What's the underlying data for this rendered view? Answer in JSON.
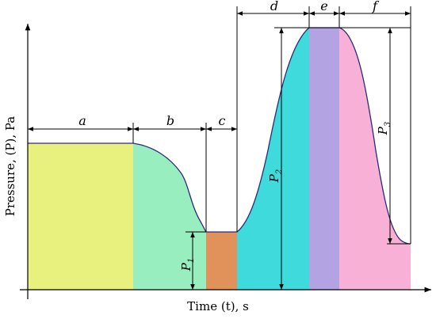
{
  "axes": {
    "y_label": "Pressure, (P), Pa",
    "x_label": "Time (t), s"
  },
  "phases": [
    {
      "label": "a",
      "color": "#e8f07e"
    },
    {
      "label": "b",
      "color": "#98eebe"
    },
    {
      "label": "c",
      "color": "#e0925a"
    },
    {
      "label": "d",
      "color": "#3fdadc"
    },
    {
      "label": "e",
      "color": "#b3a3e3"
    },
    {
      "label": "f",
      "color": "#f9b0d6"
    }
  ],
  "pressures": [
    {
      "symbol": "P",
      "subscript": "1"
    },
    {
      "symbol": "P",
      "subscript": "2"
    },
    {
      "symbol": "P",
      "subscript": "3"
    }
  ],
  "curve_color": "#2b2b7a"
}
